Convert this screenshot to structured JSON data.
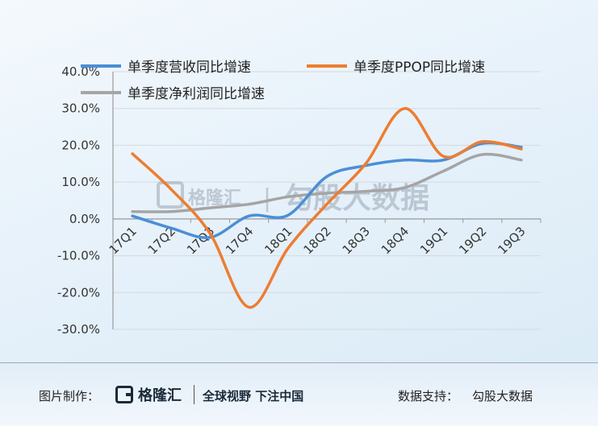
{
  "chart_data": {
    "type": "line",
    "categories": [
      "17Q1",
      "17Q2",
      "17Q3",
      "17Q4",
      "18Q1",
      "18Q2",
      "18Q3",
      "18Q4",
      "19Q1",
      "19Q2",
      "19Q3"
    ],
    "series": [
      {
        "name": "单季度营收同比增速",
        "color": "#4a8fd6",
        "values": [
          0.8,
          -2.5,
          -5.0,
          0.8,
          1.0,
          11.5,
          14.5,
          16.0,
          16.0,
          20.5,
          19.5
        ]
      },
      {
        "name": "单季度PPOP同比增速",
        "color": "#ed7d31",
        "values": [
          17.7,
          8.0,
          -4.0,
          -24.0,
          -8.0,
          4.0,
          15.0,
          30.0,
          17.0,
          21.0,
          19.0
        ]
      },
      {
        "name": "单季度净利润同比增速",
        "color": "#a5a5a5",
        "values": [
          2.0,
          2.0,
          3.0,
          4.0,
          6.0,
          7.0,
          7.5,
          8.5,
          13.0,
          17.5,
          16.0
        ]
      }
    ],
    "y_ticks": [
      "40.0%",
      "30.0%",
      "20.0%",
      "10.0%",
      "0.0%",
      "-10.0%",
      "-20.0%",
      "-30.0%"
    ],
    "ylim": [
      -30,
      40
    ],
    "grid": true,
    "legend_position": "top"
  },
  "watermark": {
    "logo_text": "格隆汇",
    "divider": "|",
    "brand": "勾股大数据"
  },
  "footer": {
    "credit_label": "图片制作：",
    "logo_text": "格隆汇",
    "slogan": "全球视野 下注中国",
    "support_label": "数据支持：",
    "support_value": "勾股大数据"
  }
}
